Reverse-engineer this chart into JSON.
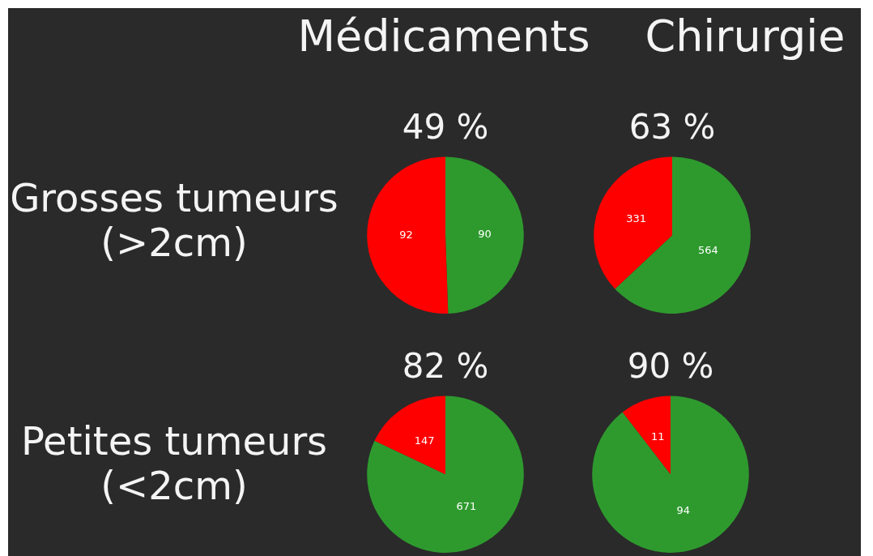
{
  "chart_data": [
    {
      "type": "other",
      "annotations": [
        "Médicaments",
        "Chirurgie",
        "Grosses tumeurs\n(>2cm)",
        "Petites tumeurs\n(<2cm)"
      ]
    },
    {
      "type": "pie",
      "title": "49 %",
      "categories": [
        null,
        null
      ],
      "values": [
        90,
        92
      ],
      "colors": [
        "#2e9a2e",
        "#ff0000"
      ],
      "data_labels": true
    },
    {
      "type": "pie",
      "title": "63 %",
      "categories": [
        null,
        null
      ],
      "values": [
        564,
        331
      ],
      "colors": [
        "#2e9a2e",
        "#ff0000"
      ],
      "data_labels": true
    },
    {
      "type": "pie",
      "title": "82 %",
      "categories": [
        null,
        null
      ],
      "values": [
        671,
        147
      ],
      "colors": [
        "#2e9a2e",
        "#ff0000"
      ],
      "data_labels": true
    },
    {
      "type": "pie",
      "title": "90 %",
      "categories": [
        null,
        null
      ],
      "values": [
        94,
        11
      ],
      "colors": [
        "#2e9a2e",
        "#ff0000"
      ],
      "data_labels": true
    }
  ]
}
